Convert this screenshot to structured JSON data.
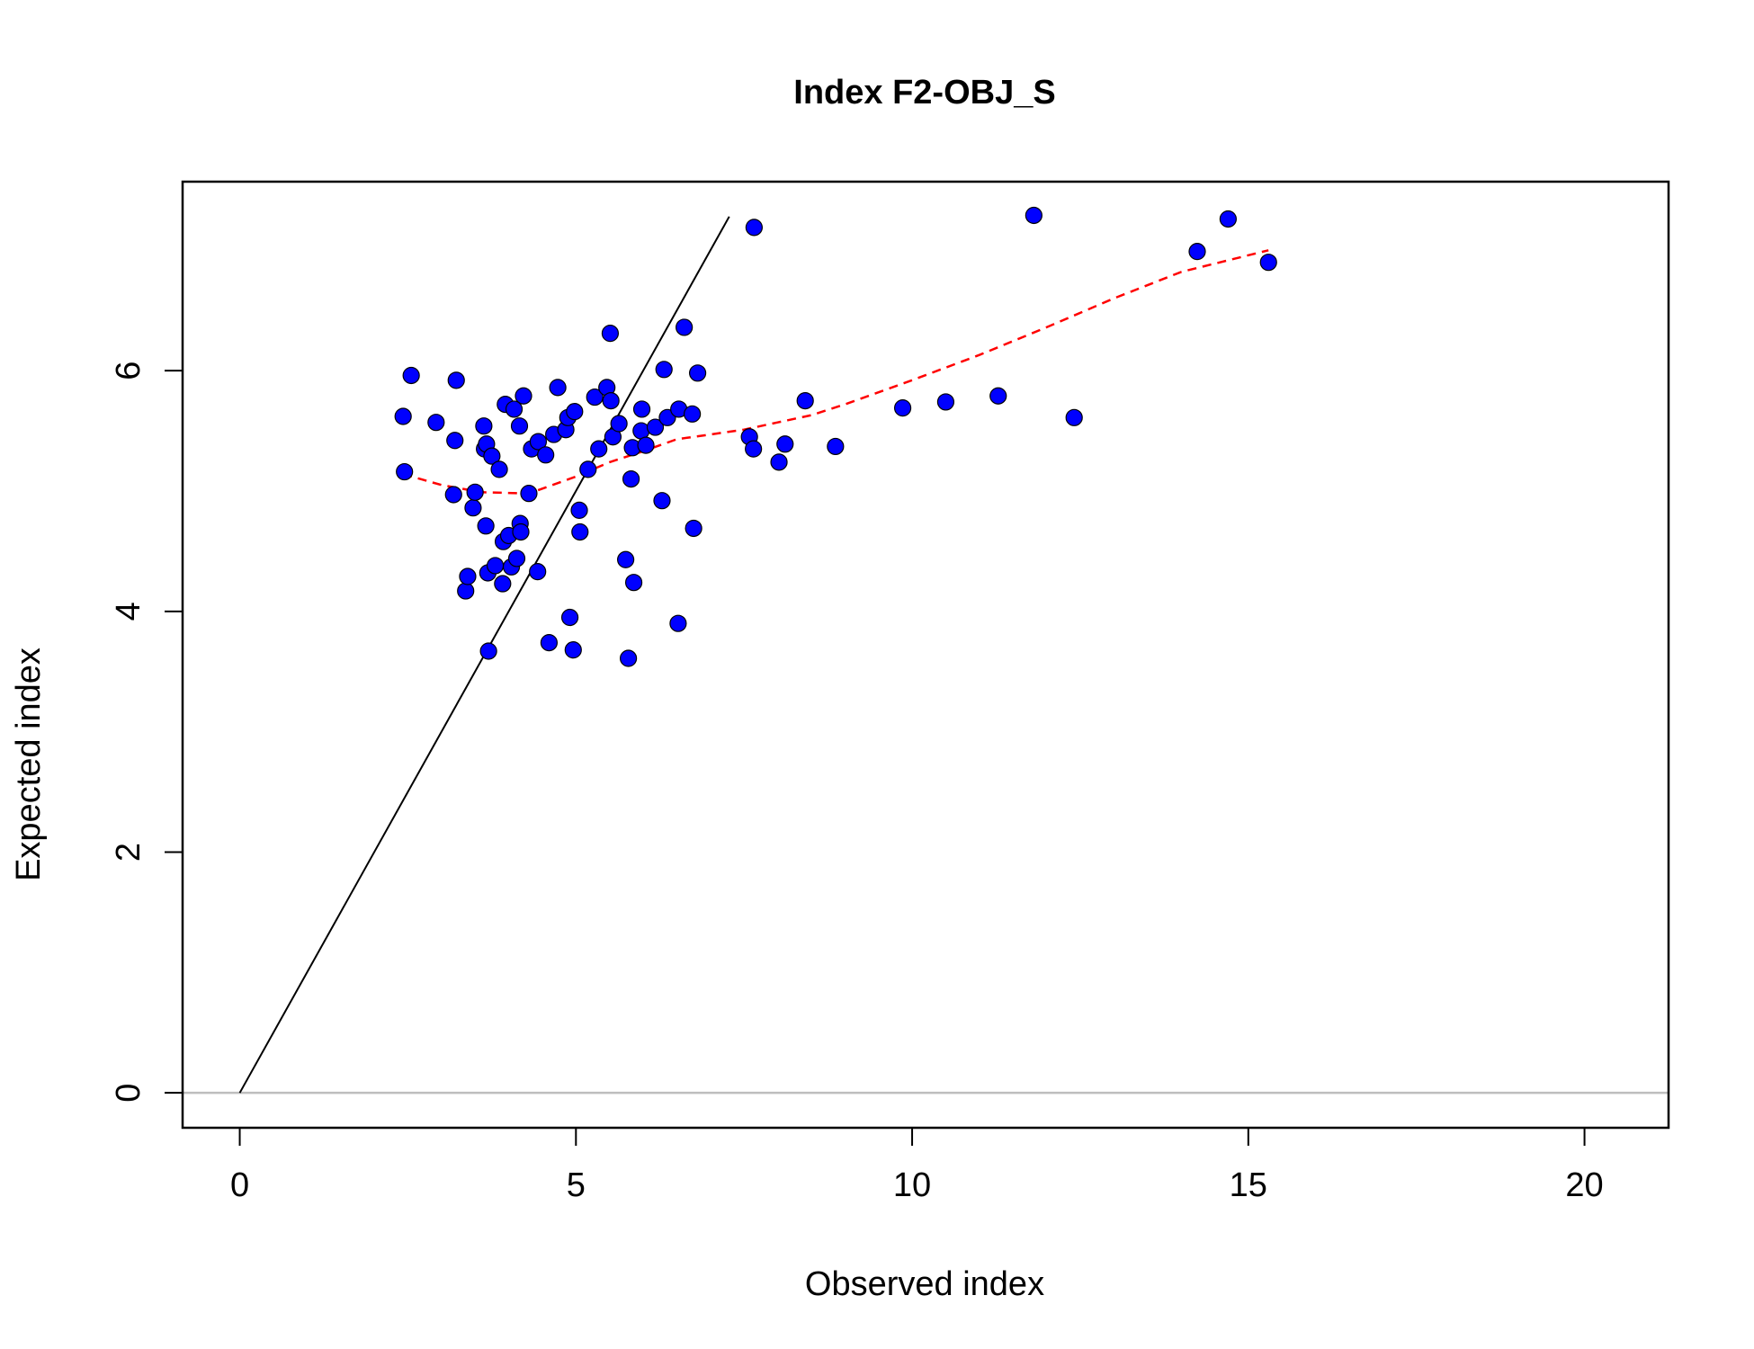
{
  "chart_data": {
    "type": "scatter",
    "title": "Index F2-OBJ_S",
    "xlabel": "Observed index",
    "ylabel": "Expected index",
    "xlim": [
      -0.85,
      21.25
    ],
    "ylim": [
      -0.29,
      7.57
    ],
    "x_ticks": [
      0,
      5,
      10,
      15,
      20
    ],
    "y_ticks": [
      0,
      2,
      4,
      6
    ],
    "grid": false,
    "legend": "none",
    "colors": {
      "points": "#0000ff",
      "point_outline": "#000000",
      "smooth_line": "#ff0000",
      "identity_line": "#000000",
      "zero_line": "#bebebe"
    },
    "identity_line": {
      "x": [
        0,
        7.28
      ],
      "y": [
        0,
        7.28
      ]
    },
    "zero_line": {
      "y": 0
    },
    "series": [
      {
        "values": [
          [
            2.43,
            5.62
          ],
          [
            2.45,
            5.16
          ],
          [
            2.55,
            5.96
          ],
          [
            2.92,
            5.57
          ],
          [
            3.18,
            4.97
          ],
          [
            3.2,
            5.42
          ],
          [
            3.22,
            5.92
          ],
          [
            3.36,
            4.17
          ],
          [
            3.39,
            4.29
          ],
          [
            3.47,
            4.86
          ],
          [
            3.5,
            4.99
          ],
          [
            3.63,
            5.54
          ],
          [
            3.64,
            5.35
          ],
          [
            3.66,
            4.71
          ],
          [
            3.67,
            5.39
          ],
          [
            3.69,
            4.32
          ],
          [
            3.7,
            3.67
          ],
          [
            3.75,
            5.29
          ],
          [
            3.8,
            4.38
          ],
          [
            3.86,
            5.18
          ],
          [
            3.91,
            4.23
          ],
          [
            3.92,
            4.58
          ],
          [
            3.95,
            5.72
          ],
          [
            4.0,
            4.63
          ],
          [
            4.04,
            4.37
          ],
          [
            4.08,
            5.68
          ],
          [
            4.12,
            4.44
          ],
          [
            4.16,
            5.54
          ],
          [
            4.17,
            4.73
          ],
          [
            4.18,
            4.66
          ],
          [
            4.22,
            5.79
          ],
          [
            4.3,
            4.98
          ],
          [
            4.34,
            5.35
          ],
          [
            4.43,
            4.33
          ],
          [
            4.44,
            5.41
          ],
          [
            4.55,
            5.3
          ],
          [
            4.6,
            3.74
          ],
          [
            4.67,
            5.47
          ],
          [
            4.73,
            5.86
          ],
          [
            4.85,
            5.51
          ],
          [
            4.88,
            5.61
          ],
          [
            4.91,
            3.95
          ],
          [
            4.96,
            3.68
          ],
          [
            4.98,
            5.66
          ],
          [
            5.05,
            4.84
          ],
          [
            5.06,
            4.66
          ],
          [
            5.18,
            5.18
          ],
          [
            5.28,
            5.78
          ],
          [
            5.34,
            5.35
          ],
          [
            5.46,
            5.86
          ],
          [
            5.51,
            6.31
          ],
          [
            5.52,
            5.75
          ],
          [
            5.55,
            5.45
          ],
          [
            5.64,
            5.56
          ],
          [
            5.74,
            4.43
          ],
          [
            5.78,
            3.61
          ],
          [
            5.82,
            5.1
          ],
          [
            5.84,
            5.36
          ],
          [
            5.86,
            4.24
          ],
          [
            5.97,
            5.5
          ],
          [
            5.98,
            5.68
          ],
          [
            6.04,
            5.38
          ],
          [
            6.18,
            5.53
          ],
          [
            6.28,
            4.92
          ],
          [
            6.31,
            6.01
          ],
          [
            6.36,
            5.61
          ],
          [
            6.52,
            3.9
          ],
          [
            6.53,
            5.68
          ],
          [
            6.61,
            6.36
          ],
          [
            6.73,
            5.64
          ],
          [
            6.75,
            4.69
          ],
          [
            6.81,
            5.98
          ],
          [
            7.58,
            5.45
          ],
          [
            7.64,
            5.35
          ],
          [
            7.65,
            7.19
          ],
          [
            8.02,
            5.24
          ],
          [
            8.11,
            5.39
          ],
          [
            8.41,
            5.75
          ],
          [
            8.86,
            5.37
          ],
          [
            9.86,
            5.69
          ],
          [
            10.5,
            5.74
          ],
          [
            11.28,
            5.79
          ],
          [
            11.81,
            7.29
          ],
          [
            12.41,
            5.61
          ],
          [
            14.24,
            6.99
          ],
          [
            14.7,
            7.26
          ],
          [
            15.3,
            6.9
          ]
        ]
      }
    ],
    "smooth_line": {
      "x": [
        2.43,
        3.0,
        3.6,
        4.3,
        5.0,
        5.5,
        6.0,
        6.5,
        7.0,
        7.5,
        8.0,
        8.5,
        9.0,
        10.0,
        11.0,
        12.0,
        13.0,
        14.0,
        15.3
      ],
      "y": [
        5.14,
        5.05,
        4.99,
        4.98,
        5.12,
        5.24,
        5.33,
        5.43,
        5.47,
        5.51,
        5.57,
        5.63,
        5.72,
        5.92,
        6.13,
        6.36,
        6.6,
        6.82,
        7.0
      ]
    }
  }
}
